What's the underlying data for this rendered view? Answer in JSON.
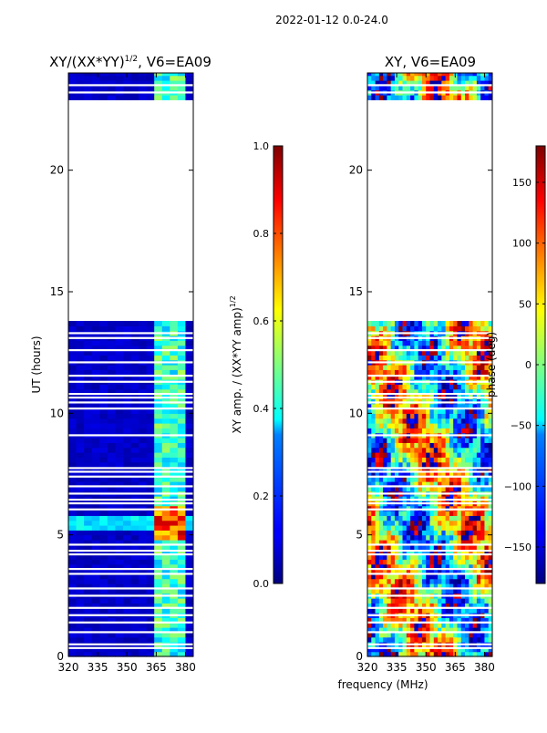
{
  "figure": {
    "suptitle": "2022-01-12 0.0-24.0",
    "shared_xlabel": "frequency (MHz)"
  },
  "chart_data": [
    {
      "type": "heatmap",
      "title_main": "XY/(XX*YY)",
      "title_exp": "1/2",
      "title_tail": ", V6=EA09",
      "xlabel": "",
      "ylabel": "UT (hours)",
      "xlim": [
        320,
        384
      ],
      "ylim": [
        0,
        24
      ],
      "xticks": [
        320,
        335,
        350,
        365,
        380
      ],
      "yticks": [
        0,
        5,
        10,
        15,
        20
      ],
      "colormap": "jet",
      "colorbar": {
        "label_main": "XY amp. / (XX*YY amp)",
        "label_exp": "1/2",
        "range": [
          0.0,
          1.0
        ],
        "ticks": [
          "0.0",
          "0.2",
          "0.4",
          "0.6",
          "0.8",
          "1.0"
        ],
        "tick_values": [
          0.0,
          0.2,
          0.4,
          0.6,
          0.8,
          1.0
        ]
      },
      "data_segments_ut": [
        [
          0,
          13.8
        ],
        [
          22.9,
          24
        ]
      ],
      "bright_channels_mhz": [
        [
          363,
          367
        ],
        [
          368,
          371
        ],
        [
          373,
          376
        ],
        [
          377,
          380
        ]
      ]
    },
    {
      "type": "heatmap",
      "title_main": "XY, V6=EA09",
      "xlabel": "frequency (MHz)",
      "ylabel": "",
      "xlim": [
        320,
        384
      ],
      "ylim": [
        0,
        24
      ],
      "xticks": [
        320,
        335,
        350,
        365,
        380
      ],
      "yticks": [
        0,
        5,
        10,
        15,
        20
      ],
      "colormap": "jet",
      "colorbar": {
        "label_main": "phase (deg)",
        "range": [
          -180,
          180
        ],
        "ticks": [
          "150",
          "100",
          "50",
          "0",
          "−50",
          "−100",
          "−150"
        ],
        "tick_values": [
          150,
          100,
          50,
          0,
          -50,
          -100,
          -150
        ]
      },
      "data_segments_ut": [
        [
          0,
          13.8
        ],
        [
          22.9,
          24
        ]
      ]
    }
  ],
  "flagged_ut_rows": [
    0.35,
    0.5,
    1.0,
    1.4,
    1.7,
    2.0,
    2.5,
    2.8,
    3.4,
    3.6,
    4.2,
    4.35,
    4.6,
    6.05,
    6.3,
    6.45,
    6.7,
    7.0,
    7.4,
    7.6,
    7.75,
    9.1,
    10.2,
    10.45,
    10.65,
    10.8,
    11.3,
    11.55,
    12.1,
    12.6,
    13.1,
    13.3,
    23.2,
    23.5
  ]
}
